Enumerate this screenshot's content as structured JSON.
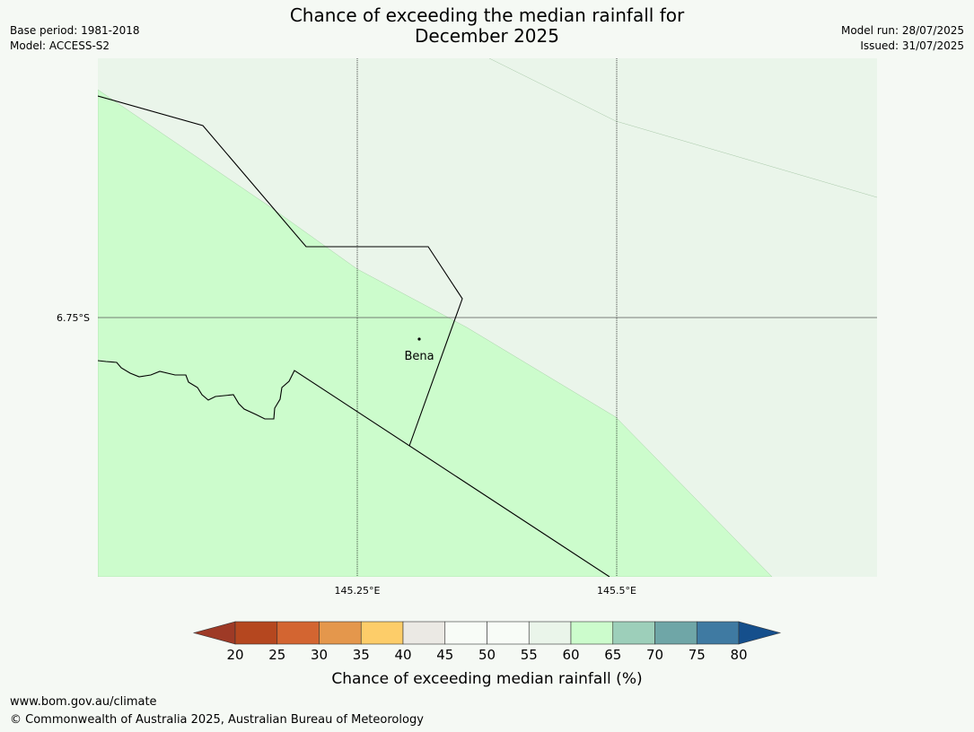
{
  "header": {
    "title_line1": "Chance of exceeding the median rainfall for",
    "title_line2": "December 2025",
    "base_period": "Base period: 1981-2018",
    "model": "Model: ACCESS-S2",
    "model_run": "Model run: 28/07/2025",
    "issued": "Issued: 31/07/2025"
  },
  "map": {
    "lat_labels": [
      "6.75°S"
    ],
    "lon_labels": [
      "145.25°E",
      "145.5°E"
    ],
    "place": "Bena",
    "fill_colors": {
      "band_55_60": "#eaf5ea",
      "band_60_65": "#ccfccc"
    }
  },
  "legend": {
    "ticks": [
      "20",
      "25",
      "30",
      "35",
      "40",
      "45",
      "50",
      "55",
      "60",
      "65",
      "70",
      "75",
      "80"
    ],
    "colors": {
      "below_20": "#9e3a26",
      "c20_25": "#b5471f",
      "c25_30": "#d36531",
      "c30_35": "#e4974c",
      "c35_40": "#fdcd69",
      "c40_45": "#ebe9e4",
      "c45_50": "#f8fcf7",
      "c50_55": "#f8fcf7",
      "c55_60": "#eaf5ea",
      "c60_65": "#ccfccc",
      "c65_70": "#9dcfba",
      "c70_75": "#6fa6a7",
      "c75_80": "#3f7aa2",
      "above_80": "#154f8c"
    },
    "label": "Chance of exceeding median rainfall (%)"
  },
  "footer": {
    "url": "www.bom.gov.au/climate",
    "copyright": "© Commonwealth of Australia 2025, Australian Bureau of Meteorology"
  }
}
